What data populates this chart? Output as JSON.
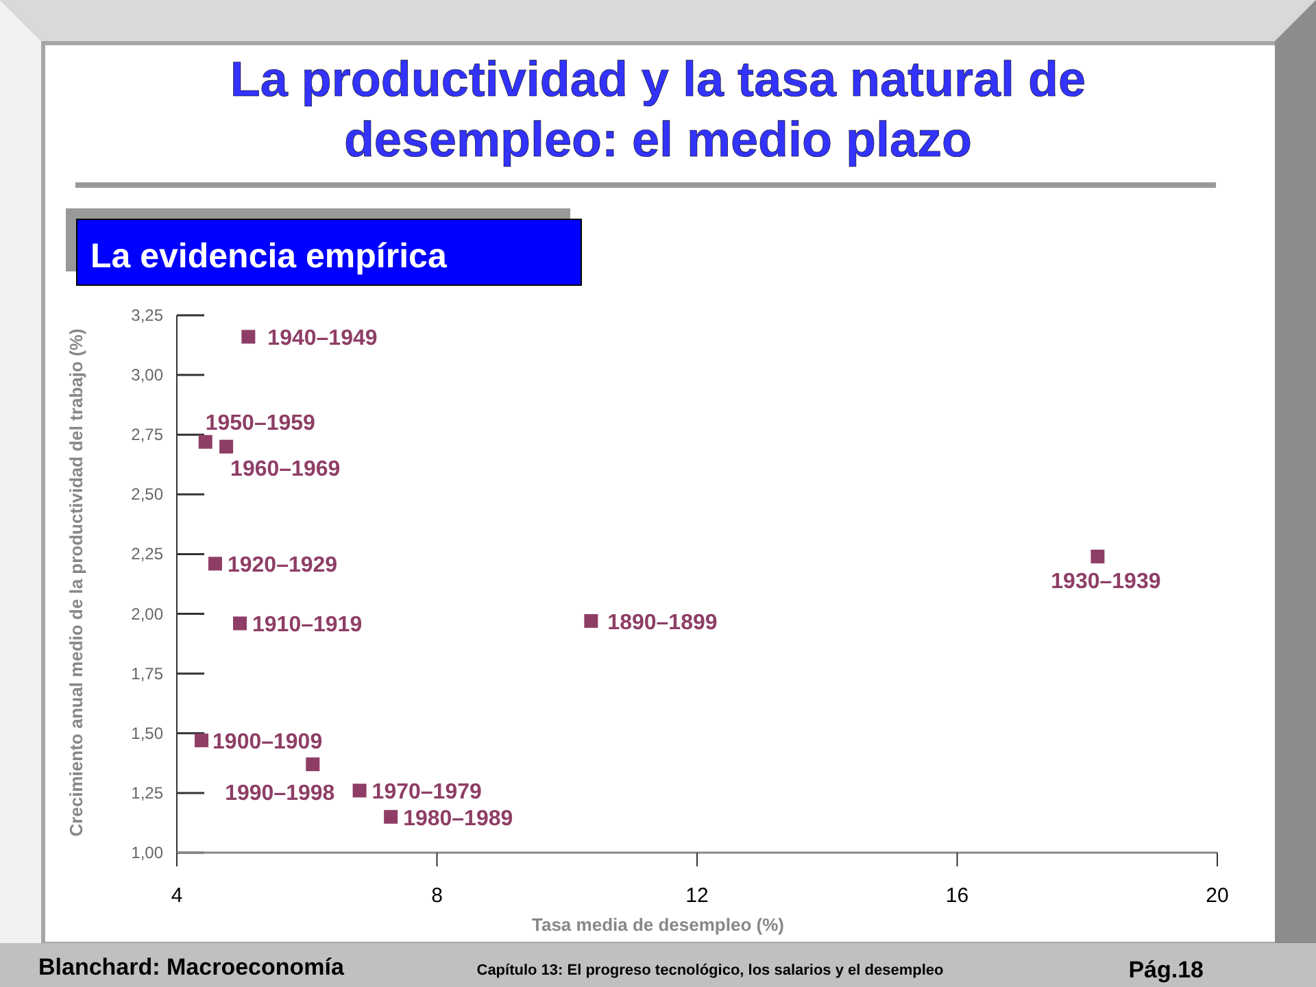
{
  "chart_data": {
    "type": "scatter",
    "title": "La productividad y la tasa natural de desempleo: el medio plazo",
    "subtitle": "La evidencia empírica",
    "xlabel": "Tasa media de desempleo (%)",
    "ylabel": "Crecimiento anual medio de la productividad del trabajo (%)",
    "x": [
      5.1,
      4.44,
      4.76,
      4.59,
      4.97,
      10.37,
      18.16,
      4.38,
      6.09,
      6.81,
      7.29
    ],
    "series": [
      {
        "color": "#8e3e66",
        "values": [
          3.16,
          2.72,
          2.7,
          2.21,
          1.96,
          1.97,
          2.24,
          1.47,
          1.37,
          1.26,
          1.15
        ]
      }
    ],
    "xlim": [
      4,
      20
    ],
    "xticks": [
      4,
      8,
      12,
      16,
      20
    ],
    "ylim": [
      1,
      3.25
    ],
    "yticks": [
      {
        "value": 1,
        "label": "1,00"
      },
      {
        "value": 1.25,
        "label": "1,25"
      },
      {
        "value": 1.5,
        "label": "1,50"
      },
      {
        "value": 1.75,
        "label": "1,75"
      },
      {
        "value": 2,
        "label": "2,00"
      },
      {
        "value": 2.25,
        "label": "2,25"
      },
      {
        "value": 2.5,
        "label": "2,50"
      },
      {
        "value": 2.75,
        "label": "2,75"
      },
      {
        "value": 3,
        "label": "3,00"
      },
      {
        "value": 3.25,
        "label": "3,25"
      }
    ],
    "marker": "square",
    "grid": false,
    "annotations": [
      {
        "text": "1940–1949",
        "x": 5.1,
        "y": 3.16
      },
      {
        "text": "1950–1959",
        "x": 4.44,
        "y": 2.72
      },
      {
        "text": "1960–1969",
        "x": 4.76,
        "y": 2.7
      },
      {
        "text": "1920–1929",
        "x": 4.59,
        "y": 2.21
      },
      {
        "text": "1910–1919",
        "x": 4.97,
        "y": 1.96
      },
      {
        "text": "1890–1899",
        "x": 10.37,
        "y": 1.97
      },
      {
        "text": "1930–1939",
        "x": 18.16,
        "y": 2.24
      },
      {
        "text": "1900–1909",
        "x": 4.38,
        "y": 1.47
      },
      {
        "text": "1990–1998",
        "x": 6.09,
        "y": 1.37
      },
      {
        "text": "1970–1979",
        "x": 6.81,
        "y": 1.26
      },
      {
        "text": "1980–1989",
        "x": 7.29,
        "y": 1.15
      },
      "Blanchard: Macroeconomía",
      "Capítulo 13: El progreso tecnológico, los salarios y el desempleo",
      "Pág.18"
    ]
  }
}
